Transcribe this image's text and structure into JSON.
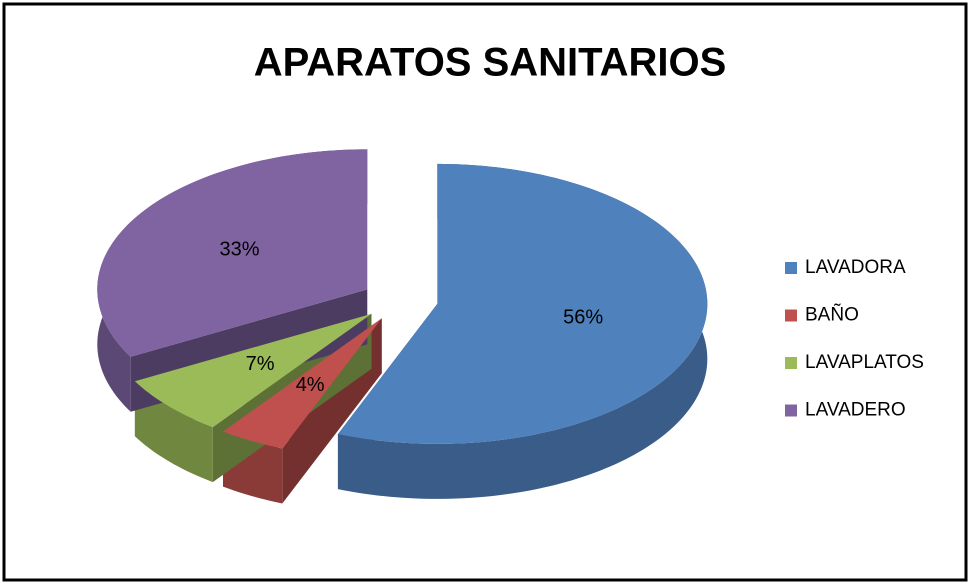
{
  "chart_data": {
    "type": "pie",
    "title": "APARATOS SANITARIOS",
    "categories": [
      "LAVADORA",
      "BAÑO",
      "LAVAPLATOS",
      "LAVADERO"
    ],
    "values": [
      56,
      4,
      7,
      33
    ],
    "value_labels": [
      "56%",
      "4%",
      "7%",
      "33%"
    ],
    "colors": [
      "#4f81bd",
      "#c0504d",
      "#9bbb59",
      "#8064a2"
    ],
    "legend": "right"
  }
}
